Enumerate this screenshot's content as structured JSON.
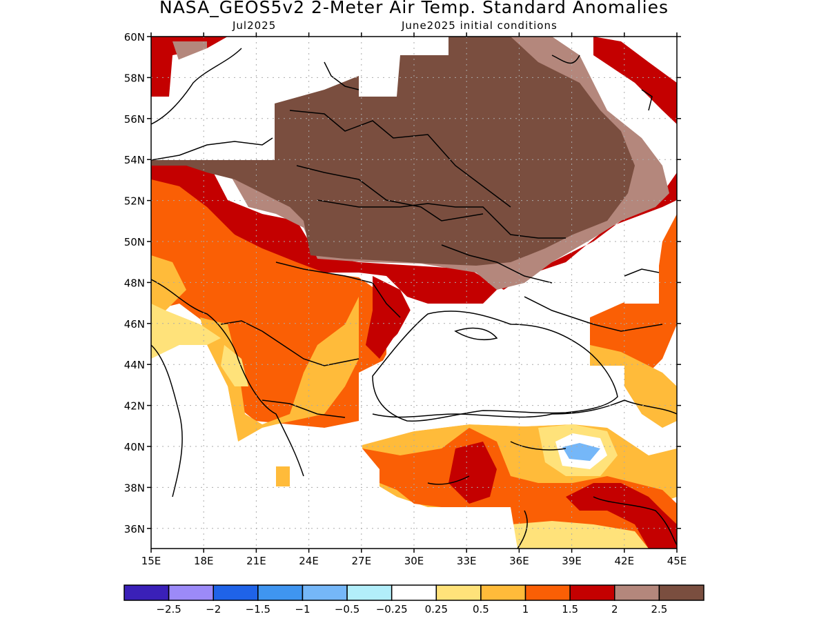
{
  "header": {
    "title": "NASA_GEOS5v2 2-Meter Air Temp. Standard Anomalies",
    "valid_month": "Jul2025",
    "init_conditions": "June2025 initial conditions"
  },
  "axes": {
    "lat_labels": [
      "60N",
      "58N",
      "56N",
      "54N",
      "52N",
      "50N",
      "48N",
      "46N",
      "44N",
      "42N",
      "40N",
      "38N",
      "36N"
    ],
    "lon_labels": [
      "15E",
      "18E",
      "21E",
      "24E",
      "27E",
      "30E",
      "33E",
      "36E",
      "39E",
      "42E",
      "45E"
    ]
  },
  "colorbar": {
    "colors": [
      "#3a20b8",
      "#9c8af8",
      "#1f63e8",
      "#3f95f0",
      "#75b7f8",
      "#b2eefa",
      "#ffffff",
      "#ffe27a",
      "#ffbb3a",
      "#fa5f05",
      "#c40000",
      "#b4877c",
      "#7a4e3f"
    ],
    "tick_labels": [
      "-2.5",
      "-2",
      "-1.5",
      "-1",
      "-0.5",
      "-0.25",
      "0.25",
      "0.5",
      "1",
      "1.5",
      "2",
      "2.5"
    ]
  },
  "map": {
    "domain": "15E-45E, 35N-60N",
    "grid": true
  }
}
